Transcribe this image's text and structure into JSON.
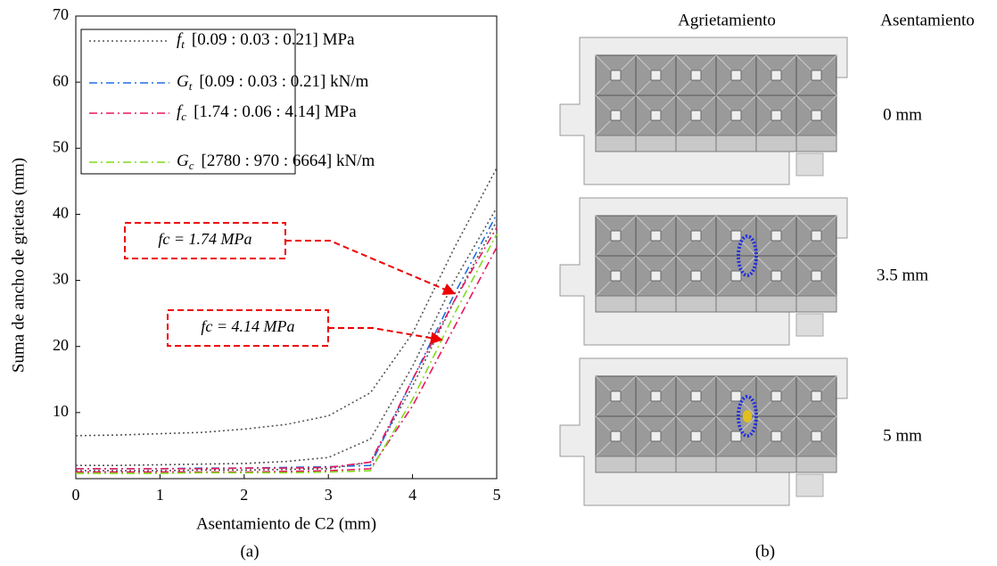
{
  "chart_data": {
    "type": "line",
    "x_label": "Asentamiento de C2 (mm)",
    "y_label": "Suma de ancho de grietas (mm)",
    "caption": "(a)",
    "x": [
      0,
      0.5,
      1,
      1.5,
      2,
      2.5,
      3,
      3.5,
      4,
      4.5,
      5
    ],
    "xlim": [
      0,
      5
    ],
    "xticks": [
      0,
      1,
      2,
      3,
      4,
      5
    ],
    "ylim": [
      0,
      70
    ],
    "yticks": [
      10,
      20,
      30,
      40,
      50,
      60,
      70
    ],
    "series": [
      {
        "symbol": "f",
        "sub": "t",
        "name": "[0.09 : 0.03 : 0.21] MPa",
        "color": "#555555",
        "dash": "2,3",
        "lines": [
          [
            6.5,
            6.6,
            6.8,
            7,
            7.5,
            8.2,
            9.5,
            13,
            22,
            35,
            47
          ],
          [
            2,
            2,
            2.1,
            2.2,
            2.3,
            2.6,
            3.2,
            6,
            17,
            30,
            41
          ],
          [
            1.2,
            1.2,
            1.2,
            1.3,
            1.3,
            1.4,
            1.5,
            2.5,
            14,
            27,
            39
          ]
        ]
      },
      {
        "symbol": "G",
        "sub": "t",
        "name": "[0.09 : 0.03 : 0.21] kN/m",
        "color": "#1f6fe0",
        "dash": "9,4,2,4",
        "lines": [
          [
            1.5,
            1.5,
            1.5,
            1.6,
            1.6,
            1.7,
            1.8,
            2,
            15,
            28,
            40
          ]
        ]
      },
      {
        "symbol": "f",
        "sub": "c",
        "name": "[1.74 : 0.06 : 4.14] MPa",
        "color": "#e8175d",
        "dash": "9,4,2,4",
        "lines": [
          [
            1.5,
            1.5,
            1.5,
            1.5,
            1.6,
            1.6,
            1.7,
            2.5,
            15,
            27,
            38
          ],
          [
            1,
            1,
            1,
            1,
            1,
            1.1,
            1.2,
            1.5,
            11,
            23,
            35
          ]
        ]
      },
      {
        "symbol": "G",
        "sub": "c",
        "name": "[2780 : 970 : 6664] kN/m",
        "color": "#7fdc1c",
        "dash": "9,4,2,4",
        "lines": [
          [
            0.8,
            0.8,
            0.8,
            0.9,
            0.9,
            0.9,
            1,
            1.2,
            12,
            25,
            37
          ]
        ]
      }
    ],
    "annotations": [
      {
        "text": "fc = 1.74 MPa",
        "x": 4.5,
        "y": 28
      },
      {
        "text": "fc = 4.14 MPa",
        "x": 4.35,
        "y": 21
      }
    ]
  },
  "panel_b": {
    "caption": "(b)",
    "headers": [
      "Agrietamiento",
      "Asentamiento"
    ],
    "rows": [
      "0 mm",
      "3.5 mm",
      "5 mm"
    ]
  }
}
